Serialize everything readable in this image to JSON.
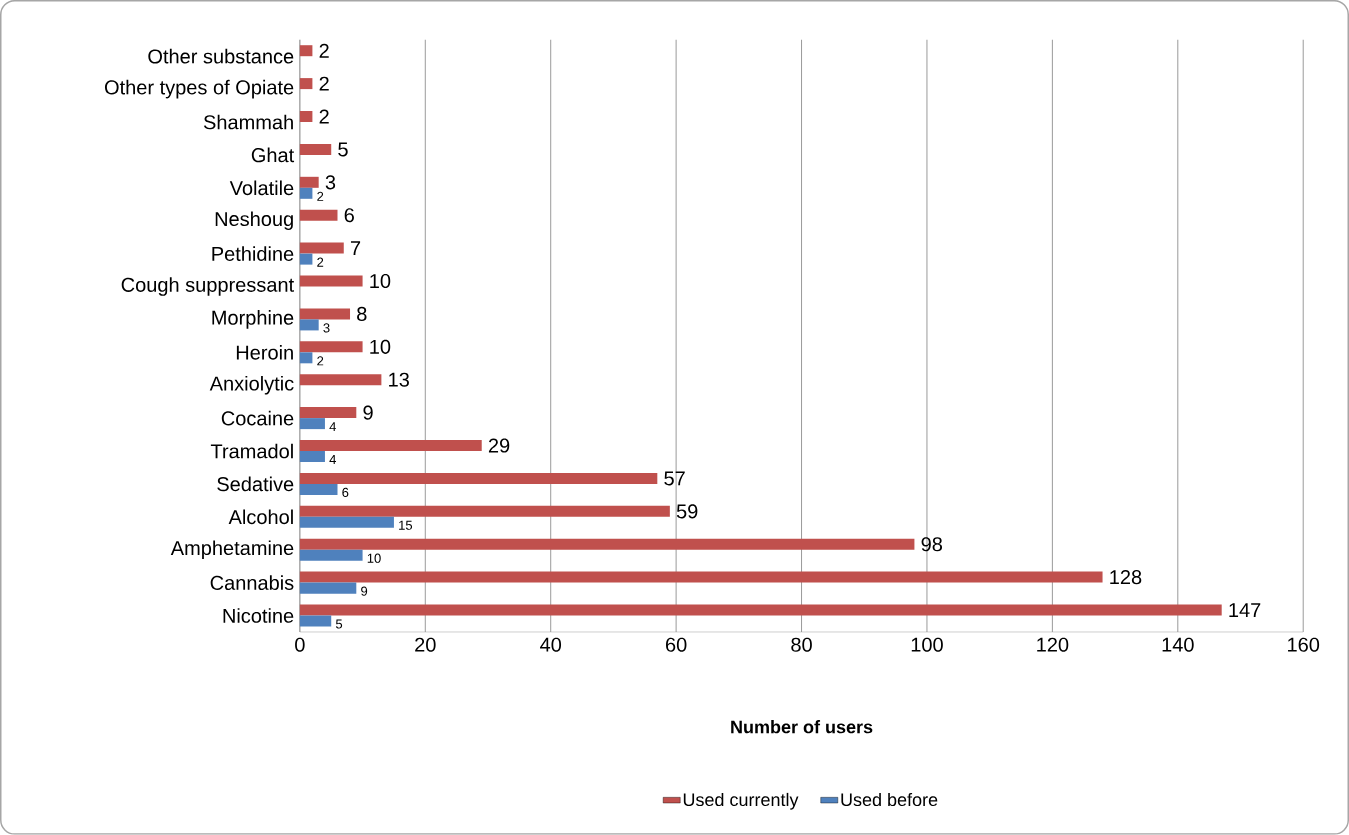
{
  "chart_data": {
    "type": "bar",
    "orientation": "horizontal",
    "xlabel": "Number of users",
    "categories": [
      "Other substance",
      "Other types of Opiate",
      "Shammah",
      "Ghat",
      "Volatile",
      "Neshoug",
      "Pethidine",
      "Cough suppressant",
      "Morphine",
      "Heroin",
      "Anxiolytic",
      "Cocaine",
      "Tramadol",
      "Sedative",
      "Alcohol",
      "Amphetamine",
      "Cannabis",
      "Nicotine"
    ],
    "series": [
      {
        "name": "Used currently",
        "color": "#c0504d",
        "values": [
          2,
          2,
          2,
          5,
          3,
          6,
          7,
          10,
          8,
          10,
          13,
          9,
          29,
          57,
          59,
          98,
          128,
          147
        ]
      },
      {
        "name": "Used before",
        "color": "#4f81bd",
        "values": [
          null,
          null,
          null,
          null,
          2,
          null,
          2,
          null,
          3,
          2,
          null,
          4,
          4,
          6,
          15,
          10,
          9,
          5
        ]
      }
    ],
    "xlim": [
      0,
      160
    ],
    "xticks": [
      0,
      20,
      40,
      60,
      80,
      100,
      120,
      140,
      160
    ],
    "grid": "x",
    "legend": "bottom",
    "data_labels": true
  }
}
